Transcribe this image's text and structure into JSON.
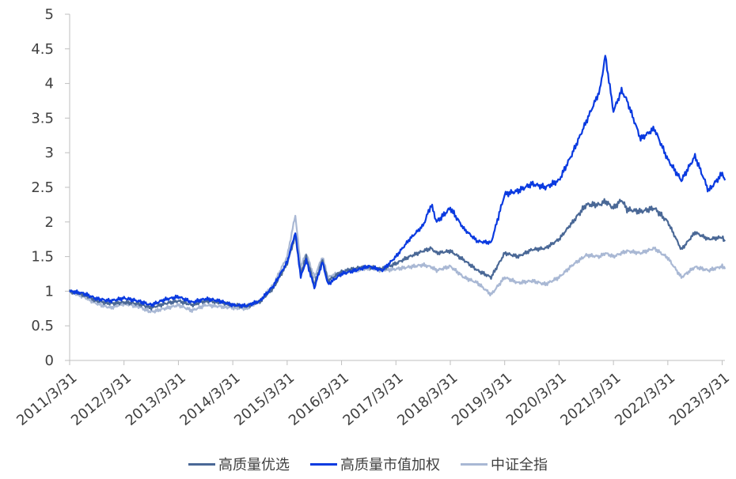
{
  "chart_data": {
    "type": "line",
    "title": "",
    "xlabel": "",
    "ylabel": "",
    "ylim": [
      0,
      5
    ],
    "yticks": [
      "0",
      "0.5",
      "1",
      "1.5",
      "2",
      "2.5",
      "3",
      "3.5",
      "4",
      "4.5",
      "5"
    ],
    "xticks": [
      "2011/3/31",
      "2012/3/31",
      "2013/3/31",
      "2014/3/31",
      "2015/3/31",
      "2016/3/31",
      "2017/3/31",
      "2018/3/31",
      "2019/3/31",
      "2020/3/31",
      "2021/3/31",
      "2022/3/31",
      "2023/3/31"
    ],
    "x": [
      2011.25,
      2011.5,
      2011.75,
      2012.0,
      2012.25,
      2012.5,
      2012.75,
      2013.0,
      2013.25,
      2013.5,
      2013.75,
      2014.0,
      2014.25,
      2014.5,
      2014.75,
      2015.0,
      2015.25,
      2015.4,
      2015.5,
      2015.6,
      2015.75,
      2015.9,
      2016.0,
      2016.25,
      2016.5,
      2016.75,
      2017.0,
      2017.25,
      2017.5,
      2017.75,
      2017.9,
      2018.0,
      2018.25,
      2018.5,
      2018.75,
      2019.0,
      2019.25,
      2019.5,
      2019.75,
      2020.0,
      2020.25,
      2020.5,
      2020.75,
      2021.0,
      2021.1,
      2021.25,
      2021.4,
      2021.5,
      2021.75,
      2022.0,
      2022.25,
      2022.5,
      2022.75,
      2023.0,
      2023.25,
      2023.3
    ],
    "series": [
      {
        "name": "高质量优选",
        "color": "#4a6896",
        "values": [
          1.0,
          0.95,
          0.86,
          0.82,
          0.84,
          0.82,
          0.76,
          0.82,
          0.86,
          0.8,
          0.86,
          0.84,
          0.8,
          0.78,
          0.85,
          1.05,
          1.4,
          1.8,
          1.25,
          1.5,
          1.1,
          1.45,
          1.15,
          1.28,
          1.33,
          1.35,
          1.32,
          1.4,
          1.5,
          1.58,
          1.62,
          1.55,
          1.58,
          1.45,
          1.3,
          1.2,
          1.55,
          1.5,
          1.6,
          1.62,
          1.75,
          2.0,
          2.25,
          2.25,
          2.3,
          2.2,
          2.32,
          2.18,
          2.15,
          2.2,
          2.0,
          1.6,
          1.85,
          1.75,
          1.78,
          1.72
        ]
      },
      {
        "name": "高质量市值加权",
        "color": "#0a3ae0",
        "values": [
          1.0,
          0.97,
          0.89,
          0.86,
          0.9,
          0.86,
          0.8,
          0.88,
          0.92,
          0.84,
          0.89,
          0.86,
          0.8,
          0.79,
          0.86,
          1.08,
          1.42,
          1.85,
          1.2,
          1.45,
          1.05,
          1.42,
          1.1,
          1.25,
          1.3,
          1.36,
          1.3,
          1.5,
          1.75,
          1.95,
          2.25,
          2.0,
          2.2,
          1.9,
          1.72,
          1.7,
          2.4,
          2.45,
          2.55,
          2.5,
          2.6,
          3.0,
          3.45,
          3.9,
          4.4,
          3.6,
          3.9,
          3.75,
          3.2,
          3.35,
          2.9,
          2.6,
          2.95,
          2.45,
          2.7,
          2.6
        ]
      },
      {
        "name": "中证全指",
        "color": "#a9b8d4",
        "values": [
          1.0,
          0.92,
          0.82,
          0.76,
          0.82,
          0.78,
          0.7,
          0.75,
          0.8,
          0.72,
          0.8,
          0.78,
          0.76,
          0.75,
          0.86,
          1.1,
          1.5,
          2.1,
          1.35,
          1.55,
          1.2,
          1.5,
          1.2,
          1.28,
          1.3,
          1.33,
          1.3,
          1.32,
          1.35,
          1.38,
          1.35,
          1.3,
          1.36,
          1.2,
          1.12,
          0.95,
          1.2,
          1.12,
          1.15,
          1.1,
          1.2,
          1.38,
          1.52,
          1.5,
          1.55,
          1.5,
          1.55,
          1.58,
          1.55,
          1.62,
          1.48,
          1.2,
          1.35,
          1.3,
          1.36,
          1.32
        ]
      }
    ],
    "grid": false,
    "legend_position": "bottom"
  }
}
